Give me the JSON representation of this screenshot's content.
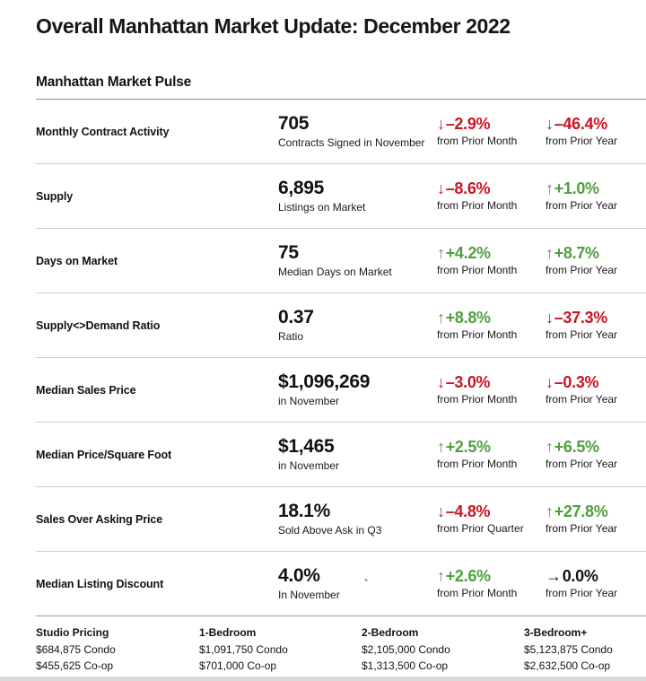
{
  "page": {
    "title": "Overall Manhattan Market Update: December 2022",
    "section_title": "Manhattan Market Pulse"
  },
  "colors": {
    "positive": "#4f9f3e",
    "negative": "#cb1422",
    "neutral": "#121212"
  },
  "metrics": [
    {
      "label": "Monthly Contract Activity",
      "value": "705",
      "value_caption": "Contracts Signed in November",
      "change_1": {
        "arrow": "↓",
        "value": "–2.9%",
        "caption": "from Prior Month",
        "direction": "down"
      },
      "change_2": {
        "arrow": "↓",
        "value": "–46.4%",
        "caption": "from Prior Year",
        "direction": "down"
      }
    },
    {
      "label": "Supply",
      "value": "6,895",
      "value_caption": "Listings on Market",
      "change_1": {
        "arrow": "↓",
        "value": "–8.6%",
        "caption": "from Prior Month",
        "direction": "down"
      },
      "change_2": {
        "arrow": "↑",
        "value": "+1.0%",
        "caption": "from Prior Year",
        "direction": "up"
      }
    },
    {
      "label": "Days on Market",
      "value": "75",
      "value_caption": "Median Days on Market",
      "change_1": {
        "arrow": "↑",
        "value": "+4.2%",
        "caption": "from Prior Month",
        "direction": "up"
      },
      "change_2": {
        "arrow": "↑",
        "value": "+8.7%",
        "caption": "from Prior Year",
        "direction": "up"
      }
    },
    {
      "label": "Supply<>Demand Ratio",
      "value": "0.37",
      "value_caption": "Ratio",
      "change_1": {
        "arrow": "↑",
        "value": "+8.8%",
        "caption": "from Prior Month",
        "direction": "up"
      },
      "change_2": {
        "arrow": "↓",
        "value": "–37.3%",
        "caption": "from Prior Year",
        "direction": "down"
      }
    },
    {
      "label": "Median Sales Price",
      "value": "$1,096,269",
      "value_caption": "in November",
      "change_1": {
        "arrow": "↓",
        "value": "–3.0%",
        "caption": "from Prior Month",
        "direction": "down"
      },
      "change_2": {
        "arrow": "↓",
        "value": "–0.3%",
        "caption": "from Prior Year",
        "direction": "down"
      }
    },
    {
      "label": "Median Price/Square Foot",
      "value": "$1,465",
      "value_caption": "in November",
      "change_1": {
        "arrow": "↑",
        "value": "+2.5%",
        "caption": "from Prior Month",
        "direction": "up"
      },
      "change_2": {
        "arrow": "↑",
        "value": "+6.5%",
        "caption": "from Prior Year",
        "direction": "up"
      }
    },
    {
      "label": "Sales Over Asking Price",
      "value": "18.1%",
      "value_caption": "Sold Above Ask in Q3",
      "change_1": {
        "arrow": "↓",
        "value": "–4.8%",
        "caption": "from Prior Quarter",
        "direction": "down"
      },
      "change_2": {
        "arrow": "↑",
        "value": "+27.8%",
        "caption": "from Prior Year",
        "direction": "up"
      }
    },
    {
      "label": "Median Listing Discount",
      "value": "4.0%",
      "value_caption": "In November",
      "change_1": {
        "arrow": "↑",
        "value": "+2.6%",
        "caption": "from Prior Month",
        "direction": "up"
      },
      "change_2": {
        "arrow": "→",
        "value": "0.0%",
        "caption": "from Prior Year",
        "direction": "flat"
      }
    }
  ],
  "footer": {
    "columns": [
      {
        "label": "Studio Pricing",
        "condo": "$684,875 Condo",
        "coop": "$455,625 Co-op"
      },
      {
        "label": "1-Bedroom",
        "condo": "$1,091,750 Condo",
        "coop": "$701,000 Co-op"
      },
      {
        "label": "2-Bedroom",
        "condo": "$2,105,000 Condo",
        "coop": "$1,313,500 Co-op"
      },
      {
        "label": "3-Bedroom+",
        "condo": "$5,123,875 Condo",
        "coop": "$2,632,500 Co-op"
      }
    ]
  },
  "stray_mark": "`"
}
